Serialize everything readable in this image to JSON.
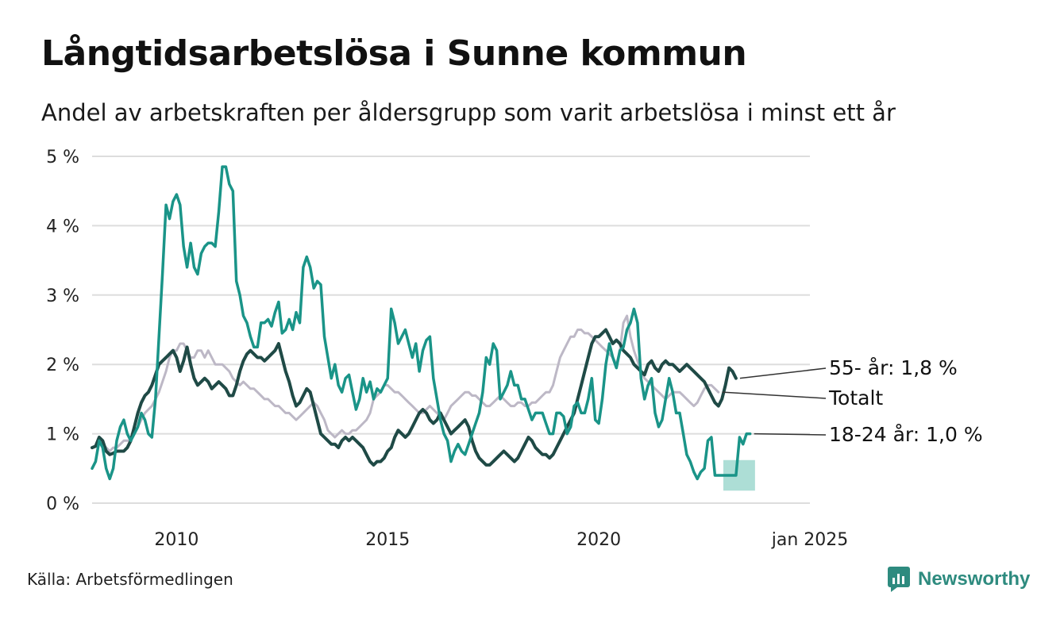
{
  "title": "Långtidsarbetslösa i Sunne kommun",
  "subtitle": "Andel av arbetskraften per åldersgrupp som varit arbetslösa i minst ett år",
  "source": "Källa: Arbetsförmedlingen",
  "brand": "Newsworthy",
  "colors": {
    "youth": "#1a9488",
    "senior": "#1f4a46",
    "total": "#bdb8c6",
    "band": "#9fd8cf",
    "grid": "#dddddd",
    "brand": "#2e8b7f"
  },
  "chart_data": {
    "type": "line",
    "x_start": 2008.0,
    "x_step": 0.0833333,
    "ylim": [
      0,
      5
    ],
    "xlim": [
      2008.0,
      2025.0
    ],
    "yticks": [
      0,
      1,
      2,
      3,
      4,
      5
    ],
    "ytick_labels": [
      "0 %",
      "1 %",
      "2 %",
      "3 %",
      "4 %",
      "5 %"
    ],
    "xticks": [
      2010,
      2015,
      2020,
      2025
    ],
    "xtick_labels": [
      "2010",
      "2015",
      "2020",
      "jan 2025"
    ],
    "series": [
      {
        "id": "total",
        "name": "Totalt",
        "label": "Totalt",
        "values": [
          0.8,
          0.83,
          0.85,
          0.85,
          0.8,
          0.75,
          0.8,
          0.8,
          0.85,
          0.9,
          0.9,
          0.9,
          1.0,
          1.1,
          1.2,
          1.3,
          1.35,
          1.4,
          1.5,
          1.6,
          1.75,
          1.9,
          2.1,
          2.2,
          2.2,
          2.3,
          2.3,
          2.2,
          2.1,
          2.1,
          2.2,
          2.2,
          2.1,
          2.2,
          2.1,
          2.0,
          2.0,
          2.0,
          1.95,
          1.9,
          1.8,
          1.75,
          1.7,
          1.75,
          1.7,
          1.65,
          1.65,
          1.6,
          1.55,
          1.5,
          1.5,
          1.45,
          1.4,
          1.4,
          1.35,
          1.3,
          1.3,
          1.25,
          1.2,
          1.25,
          1.3,
          1.35,
          1.4,
          1.45,
          1.4,
          1.3,
          1.2,
          1.05,
          1.0,
          0.95,
          1.0,
          1.05,
          1.0,
          1.0,
          1.05,
          1.05,
          1.1,
          1.15,
          1.2,
          1.3,
          1.5,
          1.55,
          1.6,
          1.7,
          1.7,
          1.65,
          1.6,
          1.6,
          1.55,
          1.5,
          1.45,
          1.4,
          1.35,
          1.3,
          1.3,
          1.35,
          1.4,
          1.35,
          1.3,
          1.25,
          1.2,
          1.3,
          1.4,
          1.45,
          1.5,
          1.55,
          1.6,
          1.6,
          1.55,
          1.55,
          1.5,
          1.45,
          1.4,
          1.4,
          1.45,
          1.5,
          1.55,
          1.5,
          1.45,
          1.4,
          1.4,
          1.45,
          1.45,
          1.4,
          1.4,
          1.45,
          1.45,
          1.5,
          1.55,
          1.6,
          1.6,
          1.7,
          1.9,
          2.1,
          2.2,
          2.3,
          2.4,
          2.4,
          2.5,
          2.5,
          2.45,
          2.45,
          2.4,
          2.35,
          2.3,
          2.25,
          2.2,
          2.15,
          2.1,
          2.0,
          2.2,
          2.6,
          2.7,
          2.4,
          2.2,
          2.05,
          1.9,
          1.8,
          1.75,
          1.7,
          1.65,
          1.6,
          1.55,
          1.5,
          1.55,
          1.6,
          1.6,
          1.6,
          1.55,
          1.5,
          1.45,
          1.4,
          1.45,
          1.55,
          1.65,
          1.7,
          1.7,
          1.65,
          1.6
        ]
      },
      {
        "id": "senior",
        "name": "55- år",
        "label": "55- år: 1,8 %",
        "values": [
          0.8,
          0.82,
          0.95,
          0.9,
          0.75,
          0.7,
          0.72,
          0.75,
          0.75,
          0.75,
          0.8,
          0.9,
          1.1,
          1.3,
          1.45,
          1.55,
          1.6,
          1.7,
          1.85,
          2.0,
          2.05,
          2.1,
          2.15,
          2.2,
          2.1,
          1.9,
          2.05,
          2.25,
          2.0,
          1.8,
          1.7,
          1.75,
          1.8,
          1.75,
          1.65,
          1.7,
          1.75,
          1.7,
          1.65,
          1.55,
          1.55,
          1.7,
          1.9,
          2.05,
          2.15,
          2.2,
          2.15,
          2.1,
          2.1,
          2.05,
          2.1,
          2.15,
          2.2,
          2.3,
          2.1,
          1.9,
          1.75,
          1.55,
          1.4,
          1.45,
          1.55,
          1.65,
          1.6,
          1.4,
          1.2,
          1.0,
          0.95,
          0.9,
          0.85,
          0.85,
          0.8,
          0.9,
          0.95,
          0.9,
          0.95,
          0.9,
          0.85,
          0.8,
          0.7,
          0.6,
          0.55,
          0.6,
          0.6,
          0.65,
          0.75,
          0.8,
          0.95,
          1.05,
          1.0,
          0.95,
          1.0,
          1.1,
          1.2,
          1.3,
          1.35,
          1.3,
          1.2,
          1.15,
          1.2,
          1.3,
          1.2,
          1.1,
          1.0,
          1.05,
          1.1,
          1.15,
          1.2,
          1.1,
          0.9,
          0.75,
          0.65,
          0.6,
          0.55,
          0.55,
          0.6,
          0.65,
          0.7,
          0.75,
          0.7,
          0.65,
          0.6,
          0.65,
          0.75,
          0.85,
          0.95,
          0.9,
          0.8,
          0.75,
          0.7,
          0.7,
          0.65,
          0.7,
          0.8,
          0.9,
          1.0,
          1.1,
          1.2,
          1.3,
          1.5,
          1.7,
          1.9,
          2.1,
          2.3,
          2.4,
          2.4,
          2.45,
          2.5,
          2.4,
          2.3,
          2.35,
          2.3,
          2.2,
          2.15,
          2.1,
          2.0,
          1.95,
          1.9,
          1.85,
          2.0,
          2.05,
          1.95,
          1.9,
          2.0,
          2.05,
          2.0,
          2.0,
          1.95,
          1.9,
          1.95,
          2.0,
          1.95,
          1.9,
          1.85,
          1.8,
          1.75,
          1.65,
          1.55,
          1.45,
          1.4,
          1.5,
          1.7,
          1.95,
          1.9,
          1.8
        ]
      },
      {
        "id": "youth",
        "name": "18-24 år",
        "label": "18-24 år: 1,0 %",
        "values": [
          0.5,
          0.6,
          0.9,
          0.8,
          0.5,
          0.35,
          0.5,
          0.9,
          1.1,
          1.2,
          1.0,
          0.9,
          1.0,
          1.1,
          1.3,
          1.2,
          1.0,
          0.95,
          1.5,
          2.4,
          3.3,
          4.3,
          4.1,
          4.35,
          4.45,
          4.3,
          3.7,
          3.4,
          3.75,
          3.4,
          3.3,
          3.6,
          3.7,
          3.75,
          3.75,
          3.7,
          4.2,
          4.85,
          4.85,
          4.6,
          4.5,
          3.2,
          3.0,
          2.7,
          2.6,
          2.4,
          2.25,
          2.25,
          2.6,
          2.6,
          2.65,
          2.55,
          2.75,
          2.9,
          2.45,
          2.5,
          2.65,
          2.5,
          2.75,
          2.6,
          3.4,
          3.55,
          3.4,
          3.1,
          3.2,
          3.15,
          2.4,
          2.1,
          1.8,
          2.0,
          1.7,
          1.6,
          1.8,
          1.85,
          1.6,
          1.35,
          1.5,
          1.8,
          1.6,
          1.75,
          1.5,
          1.65,
          1.6,
          1.7,
          1.8,
          2.8,
          2.6,
          2.3,
          2.4,
          2.5,
          2.3,
          2.1,
          2.3,
          1.9,
          2.2,
          2.35,
          2.4,
          1.8,
          1.5,
          1.2,
          1.0,
          0.9,
          0.6,
          0.75,
          0.85,
          0.75,
          0.7,
          0.85,
          1.0,
          1.15,
          1.3,
          1.6,
          2.1,
          2.0,
          2.3,
          2.2,
          1.5,
          1.6,
          1.7,
          1.9,
          1.7,
          1.7,
          1.5,
          1.5,
          1.35,
          1.2,
          1.3,
          1.3,
          1.3,
          1.15,
          1.0,
          1.0,
          1.3,
          1.3,
          1.25,
          1.0,
          1.1,
          1.4,
          1.45,
          1.3,
          1.3,
          1.5,
          1.8,
          1.2,
          1.15,
          1.5,
          2.0,
          2.3,
          2.1,
          1.95,
          2.2,
          2.25,
          2.5,
          2.6,
          2.8,
          2.6,
          1.8,
          1.5,
          1.7,
          1.8,
          1.3,
          1.1,
          1.2,
          1.5,
          1.8,
          1.6,
          1.3,
          1.3,
          1.0,
          0.7,
          0.6,
          0.45,
          0.35,
          0.45,
          0.5,
          0.9,
          0.95,
          0.4,
          0.4,
          0.4,
          0.4,
          0.4,
          0.4,
          0.4,
          0.95,
          0.85,
          1.0,
          1.0
        ]
      }
    ],
    "band": {
      "series": "youth",
      "x": [
        2022.95,
        2023.7
      ],
      "lower": 0.18,
      "upper": 0.62
    }
  }
}
